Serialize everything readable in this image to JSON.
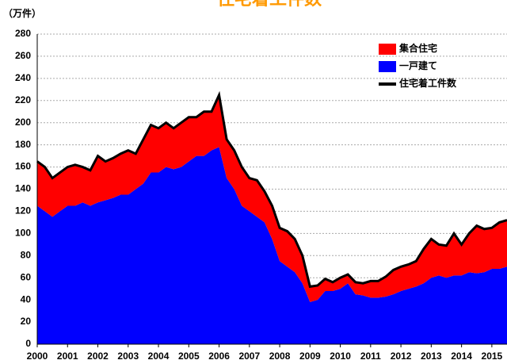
{
  "chart_data": {
    "type": "stacked-area",
    "title": "住宅着工件数",
    "y_label": "（万件）",
    "x": [
      2000,
      2000.25,
      2000.5,
      2000.75,
      2001,
      2001.25,
      2001.5,
      2001.75,
      2002,
      2002.25,
      2002.5,
      2002.75,
      2003,
      2003.25,
      2003.5,
      2003.75,
      2004,
      2004.25,
      2004.5,
      2004.75,
      2005,
      2005.25,
      2005.5,
      2005.75,
      2006,
      2006.25,
      2006.5,
      2006.75,
      2007,
      2007.25,
      2007.5,
      2007.75,
      2008,
      2008.25,
      2008.5,
      2008.75,
      2009,
      2009.25,
      2009.5,
      2009.75,
      2010,
      2010.25,
      2010.5,
      2010.75,
      2011,
      2011.25,
      2011.5,
      2011.75,
      2012,
      2012.25,
      2012.5,
      2012.75,
      2013,
      2013.25,
      2013.5,
      2013.75,
      2014,
      2014.25,
      2014.5,
      2014.75,
      2015,
      2015.25,
      2015.5
    ],
    "series": [
      {
        "name": "集合住宅",
        "color": "#ff0000",
        "kind": "area",
        "values": [
          40,
          40,
          35,
          35,
          35,
          37,
          32,
          32,
          42,
          35,
          36,
          37,
          40,
          32,
          40,
          43,
          40,
          40,
          37,
          40,
          40,
          35,
          40,
          35,
          47,
          35,
          35,
          35,
          30,
          33,
          28,
          30,
          30,
          32,
          30,
          25,
          14,
          13,
          11,
          8,
          10,
          8,
          11,
          11,
          15,
          15,
          18,
          22,
          22,
          22,
          23,
          31,
          35,
          28,
          29,
          38,
          28,
          35,
          43,
          39,
          37,
          42,
          42
        ]
      },
      {
        "name": "一戸建て",
        "color": "#0000ff",
        "kind": "area",
        "values": [
          125,
          120,
          115,
          120,
          125,
          125,
          128,
          125,
          128,
          130,
          132,
          135,
          135,
          140,
          145,
          155,
          155,
          160,
          158,
          160,
          165,
          170,
          170,
          175,
          178,
          150,
          140,
          125,
          120,
          115,
          110,
          95,
          75,
          70,
          65,
          55,
          38,
          40,
          48,
          48,
          50,
          55,
          45,
          44,
          42,
          42,
          43,
          45,
          48,
          50,
          52,
          55,
          60,
          62,
          60,
          62,
          62,
          65,
          64,
          65,
          68,
          68,
          70
        ]
      },
      {
        "name": "住宅着工件数",
        "color": "#000000",
        "kind": "line",
        "values": [
          165,
          160,
          150,
          155,
          160,
          162,
          160,
          157,
          170,
          165,
          168,
          172,
          175,
          172,
          185,
          198,
          195,
          200,
          195,
          200,
          205,
          205,
          210,
          210,
          225,
          185,
          175,
          160,
          150,
          148,
          138,
          125,
          105,
          102,
          95,
          80,
          52,
          53,
          59,
          56,
          60,
          63,
          56,
          55,
          57,
          57,
          61,
          67,
          70,
          72,
          75,
          86,
          95,
          90,
          89,
          100,
          90,
          100,
          107,
          104,
          105,
          110,
          112
        ]
      }
    ],
    "xlim": [
      2000,
      2015.5
    ],
    "xticks": [
      2000,
      2001,
      2002,
      2003,
      2004,
      2005,
      2006,
      2007,
      2008,
      2009,
      2010,
      2011,
      2012,
      2013,
      2014,
      2015
    ],
    "ylim": [
      0,
      280
    ],
    "yticks": [
      0,
      20,
      40,
      60,
      80,
      100,
      120,
      140,
      160,
      180,
      200,
      220,
      240,
      260,
      280
    ],
    "grid": true,
    "title_color": "#ff9900"
  }
}
